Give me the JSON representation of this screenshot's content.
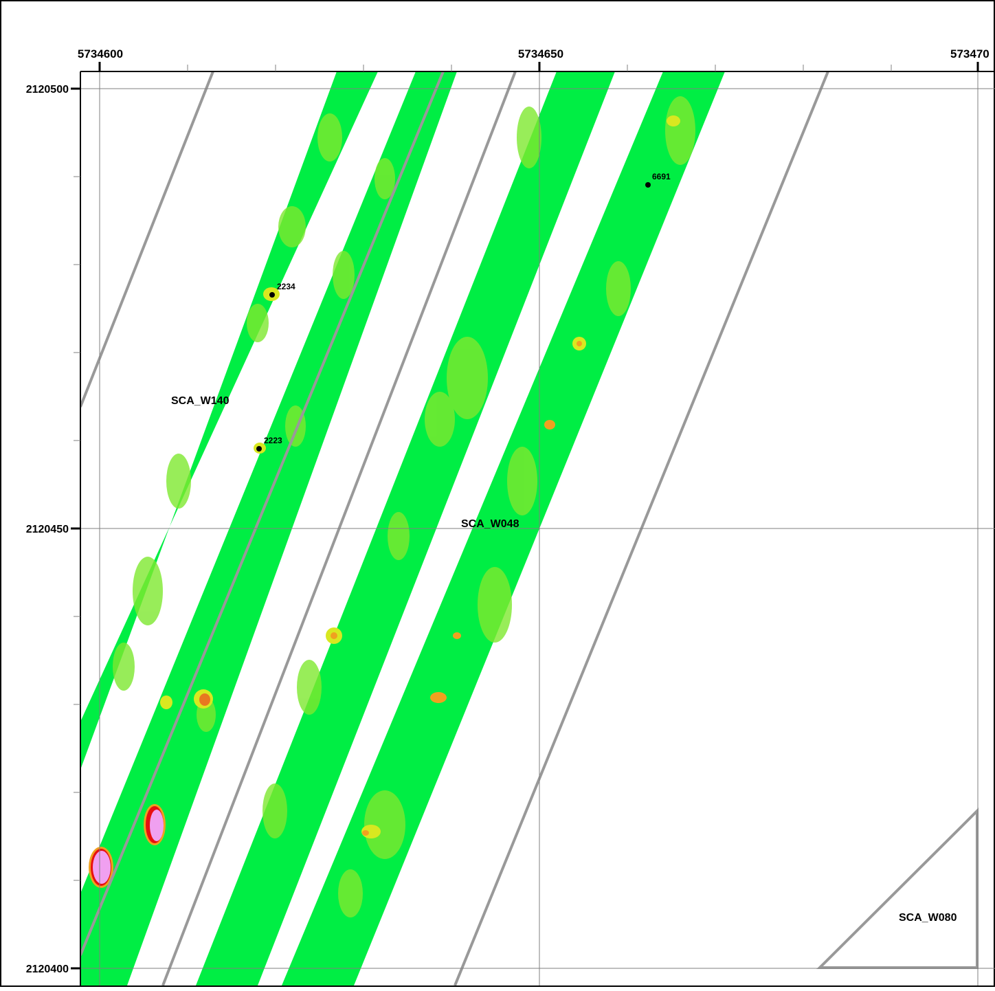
{
  "map": {
    "x_ticks": [
      "5734600",
      "5734650",
      "573470"
    ],
    "y_ticks": [
      "2120500",
      "2120450",
      "2120400"
    ],
    "area_labels": [
      "SCA_W140",
      "SCA_W048",
      "SCA_W080"
    ],
    "points": [
      {
        "label": "2234"
      },
      {
        "label": "2223"
      },
      {
        "label": "6691"
      }
    ],
    "colors": {
      "swath_green": "#00ee44",
      "swath_light": "#7ee830",
      "hotspot_yellow": "#d8e820",
      "hotspot_orange": "#f0a020",
      "hotspot_red": "#e81010",
      "hotspot_pink": "#f0a0f0",
      "boundary_gray": "#999999",
      "grid_gray": "#7f7f7f"
    }
  }
}
